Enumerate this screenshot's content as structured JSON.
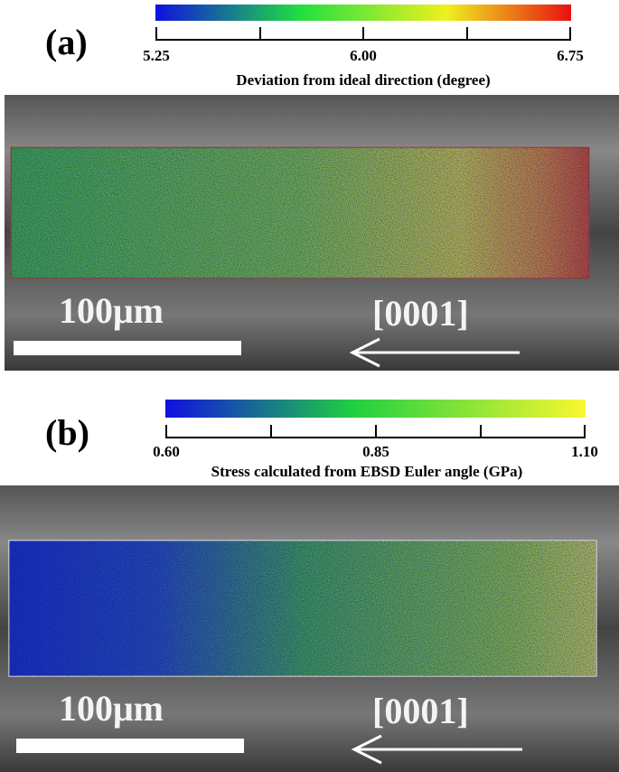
{
  "panels": [
    {
      "label": "(a)",
      "colorbar": {
        "ticks": [
          "5.25",
          "6.00",
          "6.75"
        ],
        "label": "Deviation from ideal direction (degree)"
      },
      "scale_bar": "100μm",
      "direction": "[0001]"
    },
    {
      "label": "(b)",
      "colorbar": {
        "ticks": [
          "0.60",
          "0.85",
          "1.10"
        ],
        "label": "Stress calculated  from EBSD Euler angle (GPa)"
      },
      "scale_bar": "100μm",
      "direction": "[0001]"
    }
  ]
}
